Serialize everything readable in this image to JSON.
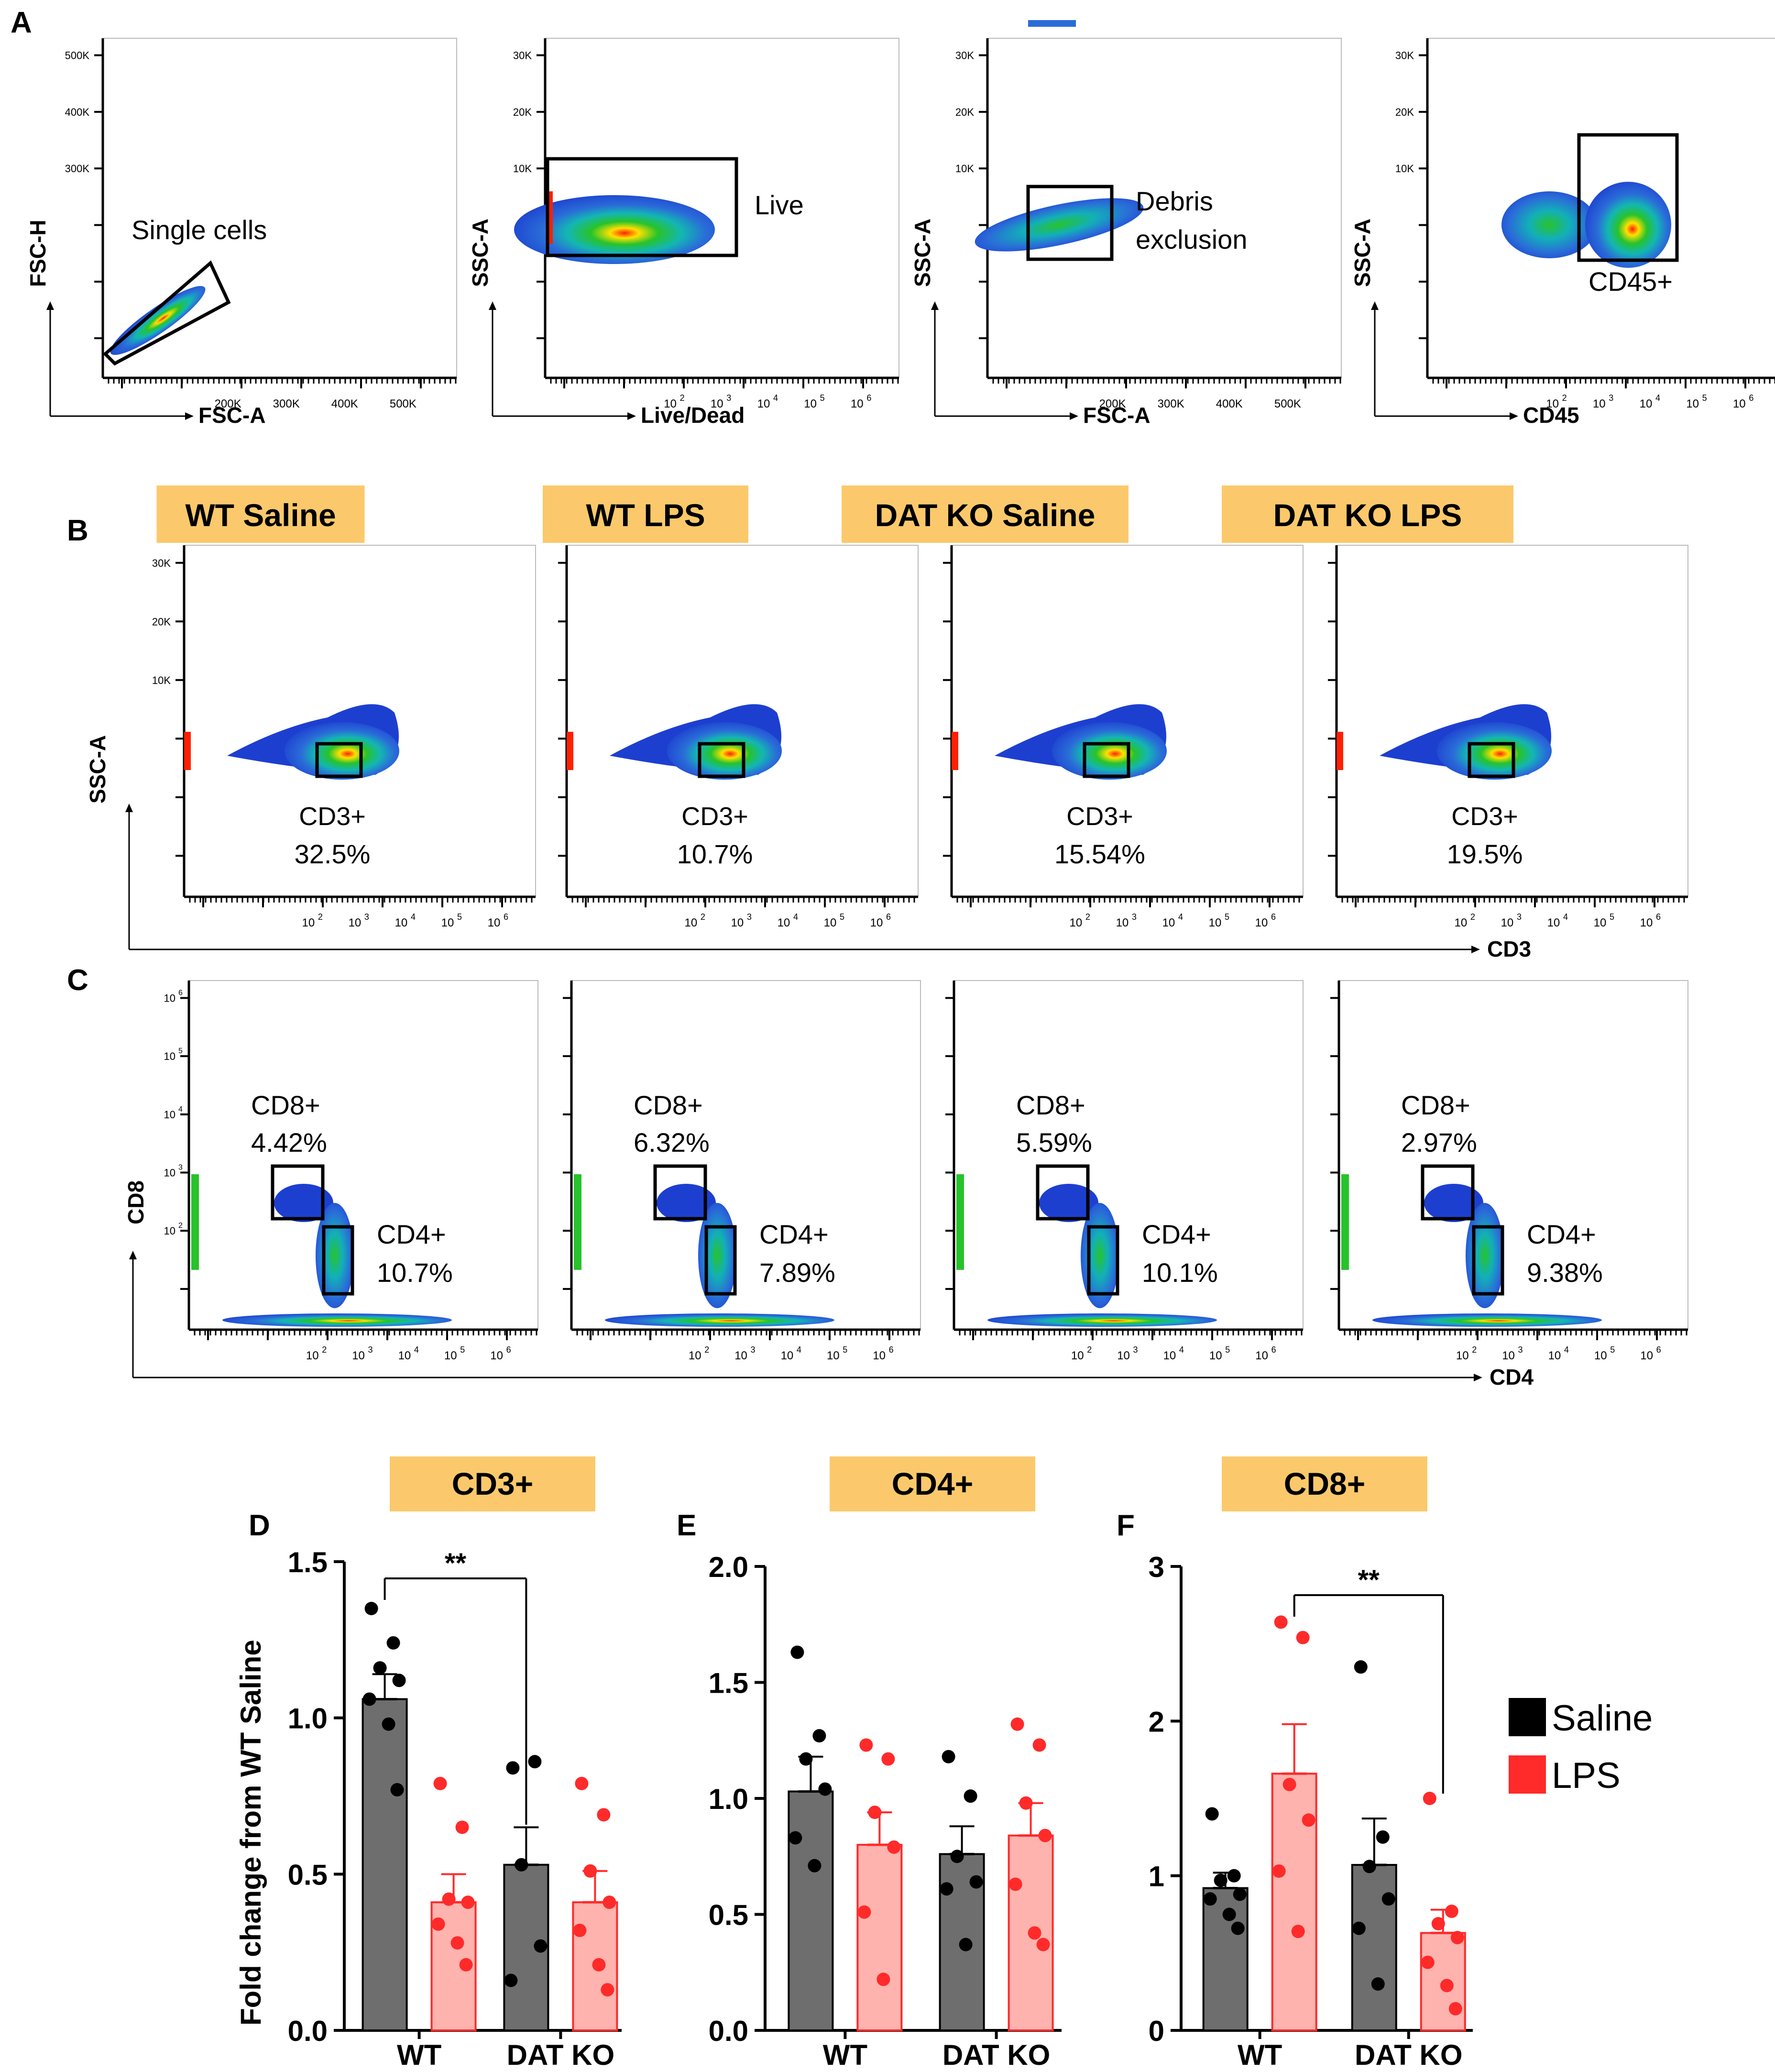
{
  "figure": {
    "panel_letters": [
      "A",
      "B",
      "C",
      "D",
      "E",
      "F"
    ],
    "colors": {
      "saline": "#000000",
      "saline_bar": "#6e6e6e",
      "lps": "#ff2a2a",
      "lps_bar": "#ffb3ae",
      "title_box": "#fbc96b",
      "density_low": "#1d3fd0",
      "density_high": "#ff2000"
    }
  },
  "panel_a": {
    "plots": [
      {
        "x_axis": "FSC-A",
        "y_axis": "FSC-H",
        "gate_label": "Single cells",
        "x_ticks": [
          "200K",
          "300K",
          "400K",
          "500K"
        ],
        "y_ticks": [
          "500K",
          "400K",
          "300K"
        ]
      },
      {
        "x_axis": "Live/Dead",
        "y_axis": "SSC-A",
        "gate_label": "Live",
        "x_ticks": [
          "10 2",
          "10 3",
          "10 4",
          "10 5",
          "10 6"
        ],
        "y_ticks": [
          "30K",
          "20K",
          "10K"
        ]
      },
      {
        "x_axis": "FSC-A",
        "y_axis": "SSC-A",
        "gate_label": "Debris exclusion",
        "x_ticks": [
          "200K",
          "300K",
          "400K",
          "500K"
        ],
        "y_ticks": [
          "30K",
          "20K",
          "10K"
        ]
      },
      {
        "x_axis": "CD45",
        "y_axis": "SSC-A",
        "gate_label": "CD45+",
        "x_ticks": [
          "10 2",
          "10 3",
          "10 4",
          "10 5",
          "10 6"
        ],
        "y_ticks": [
          "30K",
          "20K",
          "10K"
        ]
      }
    ]
  },
  "groups": [
    "WT Saline",
    "WT LPS",
    "DAT KO Saline",
    "DAT KO LPS"
  ],
  "panel_b": {
    "x_axis": "CD3",
    "y_axis": "SSC-A",
    "gate_name": "CD3+",
    "percents": [
      "32.5%",
      "10.7%",
      "15.54%",
      "19.5%"
    ],
    "y_ticks": [
      "30K",
      "20K",
      "10K"
    ],
    "x_ticks": [
      "10 2",
      "10 3",
      "10 4",
      "10 5",
      "10 6"
    ]
  },
  "panel_c": {
    "x_axis": "CD4",
    "y_axis": "CD8",
    "cd8_name": "CD8+",
    "cd4_name": "CD4+",
    "cd8_percents": [
      "4.42%",
      "6.32%",
      "5.59%",
      "2.97%"
    ],
    "cd4_percents": [
      "10.7%",
      "7.89%",
      "10.1%",
      "9.38%"
    ],
    "y_ticks": [
      "10 6",
      "10 5",
      "10 4",
      "10 3",
      "10 2"
    ],
    "x_ticks": [
      "10 2",
      "10 3",
      "10 4",
      "10 5",
      "10 6"
    ]
  },
  "chart_data": [
    {
      "type": "bar",
      "panel": "D",
      "title": "CD3+",
      "ylabel": "Fold change from WT Saline",
      "categories": [
        "WT",
        "DAT KO"
      ],
      "ylim": [
        0,
        1.5
      ],
      "yticks": [
        "0.0",
        "0.5",
        "1.0",
        "1.5"
      ],
      "significance": {
        "label": "**",
        "from": "WT Saline",
        "to": "DAT KO Saline"
      },
      "series": [
        {
          "name": "Saline",
          "values": [
            1.06,
            0.53
          ],
          "sem": [
            0.08,
            0.12
          ],
          "points": [
            [
              1.35,
              1.24,
              1.16,
              1.12,
              1.06,
              0.98,
              0.77
            ],
            [
              0.84,
              0.86,
              0.53,
              0.27,
              0.16
            ]
          ]
        },
        {
          "name": "LPS",
          "values": [
            0.41,
            0.41
          ],
          "sem": [
            0.09,
            0.1
          ],
          "points": [
            [
              0.79,
              0.65,
              0.42,
              0.41,
              0.34,
              0.28,
              0.21
            ],
            [
              0.79,
              0.69,
              0.51,
              0.41,
              0.32,
              0.21,
              0.13
            ]
          ]
        }
      ]
    },
    {
      "type": "bar",
      "panel": "E",
      "title": "CD4+",
      "ylabel": "",
      "categories": [
        "WT",
        "DAT KO"
      ],
      "ylim": [
        0,
        2.0
      ],
      "yticks": [
        "0.0",
        "0.5",
        "1.0",
        "1.5",
        "2.0"
      ],
      "series": [
        {
          "name": "Saline",
          "values": [
            1.03,
            0.76
          ],
          "sem": [
            0.15,
            0.12
          ],
          "points": [
            [
              1.63,
              1.27,
              1.17,
              1.04,
              0.83,
              0.71
            ],
            [
              1.18,
              1.01,
              0.75,
              0.64,
              0.61,
              0.37
            ]
          ]
        },
        {
          "name": "LPS",
          "values": [
            0.8,
            0.84
          ],
          "sem": [
            0.14,
            0.14
          ],
          "points": [
            [
              1.23,
              1.17,
              0.94,
              0.79,
              0.51,
              0.22
            ],
            [
              1.32,
              1.23,
              0.98,
              0.84,
              0.63,
              0.42,
              0.37
            ]
          ]
        }
      ]
    },
    {
      "type": "bar",
      "panel": "F",
      "title": "CD8+",
      "ylabel": "",
      "categories": [
        "WT",
        "DAT KO"
      ],
      "ylim": [
        0,
        3
      ],
      "yticks": [
        "0",
        "1",
        "2",
        "3"
      ],
      "significance": {
        "label": "**",
        "from": "WT LPS",
        "to": "DAT KO LPS"
      },
      "series": [
        {
          "name": "Saline",
          "values": [
            0.92,
            1.07
          ],
          "sem": [
            0.1,
            0.3
          ],
          "points": [
            [
              1.4,
              1.0,
              0.97,
              0.88,
              0.85,
              0.75,
              0.66
            ],
            [
              2.35,
              1.25,
              1.06,
              0.85,
              0.66,
              0.3
            ]
          ]
        },
        {
          "name": "LPS",
          "values": [
            1.66,
            0.63
          ],
          "sem": [
            0.32,
            0.15
          ],
          "points": [
            [
              2.64,
              2.54,
              1.59,
              1.36,
              1.03,
              0.64
            ],
            [
              1.5,
              0.77,
              0.69,
              0.6,
              0.44,
              0.29,
              0.14
            ]
          ]
        }
      ]
    }
  ],
  "legend": {
    "items": [
      "Saline",
      "LPS"
    ]
  }
}
